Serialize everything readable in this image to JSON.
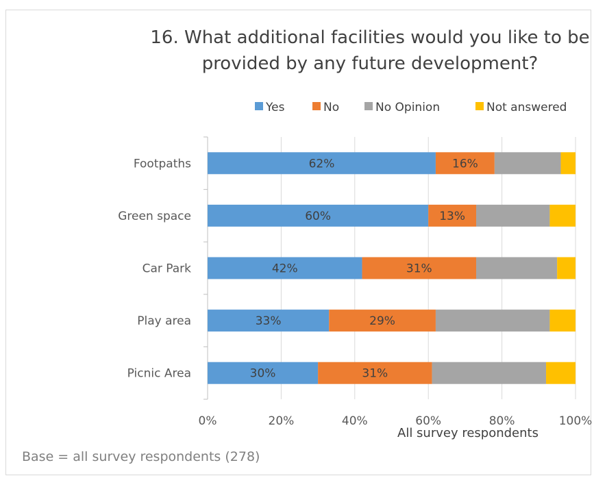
{
  "chart_data": {
    "type": "bar",
    "orientation": "horizontal",
    "stacked": true,
    "title": "16. What additional facilities would you like to be provided by any future development?",
    "title_lines": [
      "16. What additional facilities would you like to be",
      "provided by any future development?"
    ],
    "categories": [
      "Footpaths",
      "Green space",
      "Car Park",
      "Play area",
      "Picnic Area"
    ],
    "series": [
      {
        "name": "Yes",
        "color": "#5b9bd5",
        "values": [
          62,
          60,
          42,
          33,
          30
        ],
        "labels": [
          "62%",
          "60%",
          "42%",
          "33%",
          "30%"
        ]
      },
      {
        "name": "No",
        "color": "#ed7d31",
        "values": [
          16,
          13,
          31,
          29,
          31
        ],
        "labels": [
          "16%",
          "13%",
          "31%",
          "29%",
          "31%"
        ]
      },
      {
        "name": "No Opinion",
        "color": "#a5a5a5",
        "values": [
          18,
          20,
          22,
          31,
          31
        ]
      },
      {
        "name": "Not answered",
        "color": "#ffc000",
        "values": [
          4,
          7,
          5,
          7,
          8
        ]
      }
    ],
    "xlim": [
      0,
      100
    ],
    "xticks": [
      "0%",
      "20%",
      "40%",
      "60%",
      "80%",
      "100%"
    ],
    "xlabel": "All survey respondents",
    "legend_position": "top",
    "grid": true
  },
  "footnote": "Base = all survey respondents (278)"
}
